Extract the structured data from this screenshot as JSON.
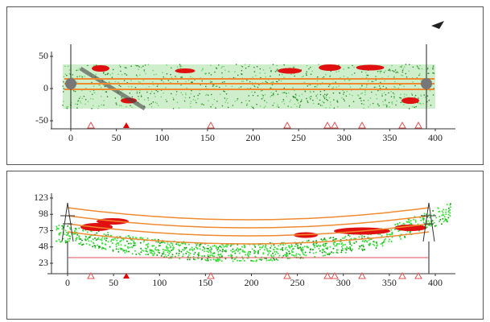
{
  "top_view": {
    "xticks": [
      0,
      50,
      100,
      150,
      200,
      250,
      300,
      350,
      400
    ],
    "yticks": [
      50,
      0,
      -50
    ]
  },
  "side_view": {
    "xticks": [
      0,
      50,
      100,
      150,
      200,
      250,
      300,
      350,
      400
    ],
    "yticks": [
      123,
      98,
      73,
      48,
      23
    ]
  }
}
